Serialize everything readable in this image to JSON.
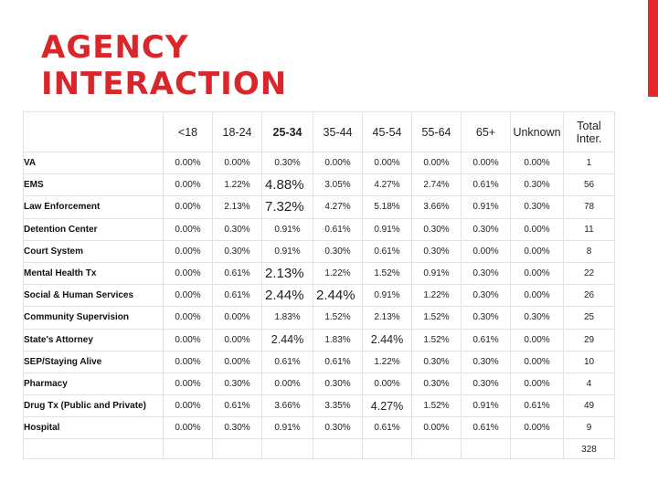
{
  "title": "AGENCY\nINTERACTION",
  "accent_color": "#d9262b",
  "table": {
    "columns": [
      "<18",
      "18-24",
      "25-34",
      "35-44",
      "45-54",
      "55-64",
      "65+",
      "Unknown",
      "Total Inter."
    ],
    "rows": [
      {
        "label": "VA",
        "values": [
          "0.00%",
          "0.00%",
          "0.30%",
          "0.00%",
          "0.00%",
          "0.00%",
          "0.00%",
          "0.00%",
          "1"
        ]
      },
      {
        "label": "EMS",
        "values": [
          "0.00%",
          "1.22%",
          "4.88%",
          "3.05%",
          "4.27%",
          "2.74%",
          "0.61%",
          "0.30%",
          "56"
        ]
      },
      {
        "label": "Law Enforcement",
        "values": [
          "0.00%",
          "2.13%",
          "7.32%",
          "4.27%",
          "5.18%",
          "3.66%",
          "0.91%",
          "0.30%",
          "78"
        ]
      },
      {
        "label": "Detention Center",
        "values": [
          "0.00%",
          "0.30%",
          "0.91%",
          "0.61%",
          "0.91%",
          "0.30%",
          "0.30%",
          "0.00%",
          "11"
        ]
      },
      {
        "label": "Court System",
        "values": [
          "0.00%",
          "0.30%",
          "0.91%",
          "0.30%",
          "0.61%",
          "0.30%",
          "0.00%",
          "0.00%",
          "8"
        ]
      },
      {
        "label": "Mental Health Tx",
        "values": [
          "0.00%",
          "0.61%",
          "2.13%",
          "1.22%",
          "1.52%",
          "0.91%",
          "0.30%",
          "0.00%",
          "22"
        ]
      },
      {
        "label": "Social & Human Services",
        "values": [
          "0.00%",
          "0.61%",
          "2.44%",
          "2.44%",
          "0.91%",
          "1.22%",
          "0.30%",
          "0.00%",
          "26"
        ]
      },
      {
        "label": "Community Supervision",
        "values": [
          "0.00%",
          "0.00%",
          "1.83%",
          "1.52%",
          "2.13%",
          "1.52%",
          "0.30%",
          "0.30%",
          "25"
        ]
      },
      {
        "label": "State's Attorney",
        "values": [
          "0.00%",
          "0.00%",
          "2.44%",
          "1.83%",
          "2.44%",
          "1.52%",
          "0.61%",
          "0.00%",
          "29"
        ]
      },
      {
        "label": "SEP/Staying Alive",
        "values": [
          "0.00%",
          "0.00%",
          "0.61%",
          "0.61%",
          "1.22%",
          "0.30%",
          "0.30%",
          "0.00%",
          "10"
        ]
      },
      {
        "label": "Pharmacy",
        "values": [
          "0.00%",
          "0.30%",
          "0.00%",
          "0.30%",
          "0.00%",
          "0.30%",
          "0.30%",
          "0.00%",
          "4"
        ]
      },
      {
        "label": "Drug Tx (Public and Private)",
        "values": [
          "0.00%",
          "0.61%",
          "3.66%",
          "3.35%",
          "4.27%",
          "1.52%",
          "0.91%",
          "0.61%",
          "49"
        ]
      },
      {
        "label": "Hospital",
        "values": [
          "0.00%",
          "0.30%",
          "0.91%",
          "0.30%",
          "0.61%",
          "0.00%",
          "0.61%",
          "0.00%",
          "9"
        ]
      }
    ],
    "grand_total": "328"
  }
}
